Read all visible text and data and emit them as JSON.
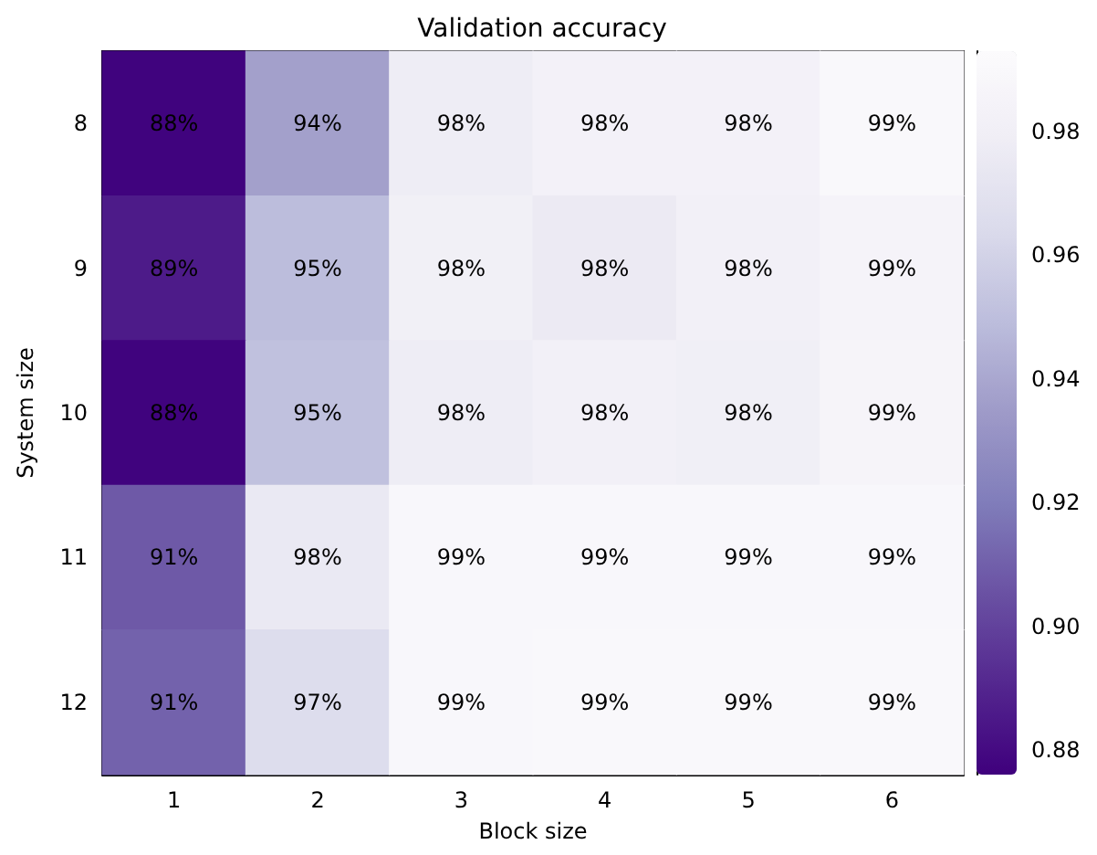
{
  "chart_data": {
    "type": "heatmap",
    "title": "Validation accuracy",
    "xlabel": "Block size",
    "ylabel": "System size",
    "categories": [
      "1",
      "2",
      "3",
      "4",
      "5",
      "6"
    ],
    "y_categories": [
      "8",
      "9",
      "10",
      "11",
      "12"
    ],
    "cells": [
      [
        0.877,
        0.937,
        0.978,
        0.983,
        0.983,
        0.99
      ],
      [
        0.886,
        0.949,
        0.981,
        0.976,
        0.982,
        0.985
      ],
      [
        0.877,
        0.951,
        0.978,
        0.982,
        0.98,
        0.986
      ],
      [
        0.908,
        0.975,
        0.989,
        0.989,
        0.989,
        0.989
      ],
      [
        0.911,
        0.966,
        0.989,
        0.99,
        0.99,
        0.99
      ]
    ],
    "cell_labels": [
      [
        "88%",
        "94%",
        "98%",
        "98%",
        "98%",
        "99%"
      ],
      [
        "89%",
        "95%",
        "98%",
        "98%",
        "98%",
        "99%"
      ],
      [
        "88%",
        "95%",
        "98%",
        "98%",
        "98%",
        "99%"
      ],
      [
        "91%",
        "98%",
        "99%",
        "99%",
        "99%",
        "99%"
      ],
      [
        "91%",
        "97%",
        "99%",
        "99%",
        "99%",
        "99%"
      ]
    ],
    "clim": [
      0.876,
      0.993
    ],
    "cticks": [
      0.88,
      {
        "value": 0.9,
        "label": "0.90"
      },
      0.92,
      0.94,
      0.96,
      0.98
    ]
  }
}
